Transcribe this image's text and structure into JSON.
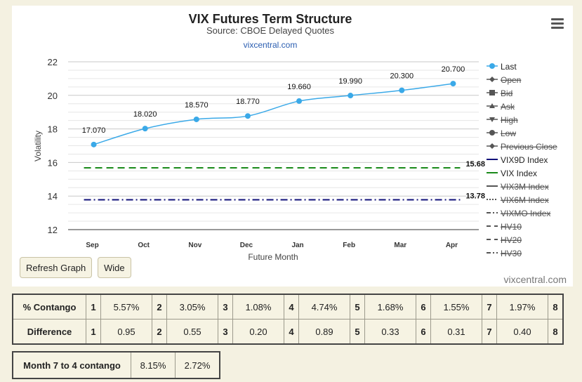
{
  "chart_data": {
    "type": "line",
    "title": "VIX Futures Term Structure",
    "subtitle": "Source: CBOE Delayed Quotes",
    "link": "vixcentral.com",
    "xlabel": "Future Month",
    "ylabel": "Volatility",
    "categories": [
      "Sep",
      "Oct",
      "Nov",
      "Dec",
      "Jan",
      "Feb",
      "Mar",
      "Apr"
    ],
    "ylim": [
      12,
      22
    ],
    "yticks": [
      12,
      14,
      16,
      18,
      20,
      22
    ],
    "series": [
      {
        "name": "Last",
        "values": [
          17.07,
          18.02,
          18.57,
          18.77,
          19.66,
          19.99,
          20.3,
          20.7
        ],
        "labels": [
          "17.070",
          "18.020",
          "18.570",
          "18.770",
          "19.660",
          "19.990",
          "20.300",
          "20.700"
        ],
        "color": "#3aa9e8"
      },
      {
        "name": "VIX Index",
        "values": [
          15.68,
          15.68,
          15.68,
          15.68,
          15.68,
          15.68,
          15.68,
          15.68
        ],
        "end_label": "15.68",
        "color": "#1a8a1a"
      },
      {
        "name": "VIX9D Index",
        "values": [
          13.78,
          13.78,
          13.78,
          13.78,
          13.78,
          13.78,
          13.78,
          13.78
        ],
        "end_label": "13.78",
        "color": "#10107a"
      }
    ],
    "legend": {
      "placement": "right",
      "items": [
        {
          "label": "Last",
          "marker": "circle",
          "color": "#3aa9e8",
          "hidden": false
        },
        {
          "label": "Open",
          "marker": "diamond",
          "color": "#555555",
          "hidden": true
        },
        {
          "label": "Bid",
          "marker": "square",
          "color": "#555555",
          "hidden": true
        },
        {
          "label": "Ask",
          "marker": "triangle",
          "color": "#555555",
          "hidden": true
        },
        {
          "label": "High",
          "marker": "triangle-down",
          "color": "#555555",
          "hidden": true
        },
        {
          "label": "Low",
          "marker": "circle",
          "color": "#555555",
          "hidden": true
        },
        {
          "label": "Previous Close",
          "marker": "diamond",
          "color": "#555555",
          "hidden": true
        },
        {
          "label": "VIX9D Index",
          "marker": "line",
          "color": "#10107a",
          "hidden": false
        },
        {
          "label": "VIX Index",
          "marker": "line",
          "color": "#1a8a1a",
          "hidden": false
        },
        {
          "label": "VIX3M Index",
          "marker": "line",
          "color": "#555555",
          "hidden": true
        },
        {
          "label": "VIX6M Index",
          "marker": "dotted",
          "color": "#555555",
          "hidden": true
        },
        {
          "label": "VIXMO Index",
          "marker": "dashdot",
          "color": "#555555",
          "hidden": true
        },
        {
          "label": "HV10",
          "marker": "dashed",
          "color": "#555555",
          "hidden": true
        },
        {
          "label": "HV20",
          "marker": "dashed",
          "color": "#555555",
          "hidden": true
        },
        {
          "label": "HV30",
          "marker": "dashdot",
          "color": "#555555",
          "hidden": true
        }
      ]
    }
  },
  "buttons": {
    "refresh": "Refresh Graph",
    "wide": "Wide"
  },
  "credit": "vixcentral.com",
  "contango_table": {
    "rows": [
      {
        "label": "% Contango",
        "cells": [
          [
            "1",
            "5.57%"
          ],
          [
            "2",
            "3.05%"
          ],
          [
            "3",
            "1.08%"
          ],
          [
            "4",
            "4.74%"
          ],
          [
            "5",
            "1.68%"
          ],
          [
            "6",
            "1.55%"
          ],
          [
            "7",
            "1.97%"
          ],
          [
            "8",
            ""
          ]
        ]
      },
      {
        "label": "Difference",
        "cells": [
          [
            "1",
            "0.95"
          ],
          [
            "2",
            "0.55"
          ],
          [
            "3",
            "0.20"
          ],
          [
            "4",
            "0.89"
          ],
          [
            "5",
            "0.33"
          ],
          [
            "6",
            "0.31"
          ],
          [
            "7",
            "0.40"
          ],
          [
            "8",
            ""
          ]
        ]
      }
    ]
  },
  "month_table": {
    "label": "Month 7 to 4 contango",
    "v1": "8.15%",
    "v2": "2.72%"
  }
}
